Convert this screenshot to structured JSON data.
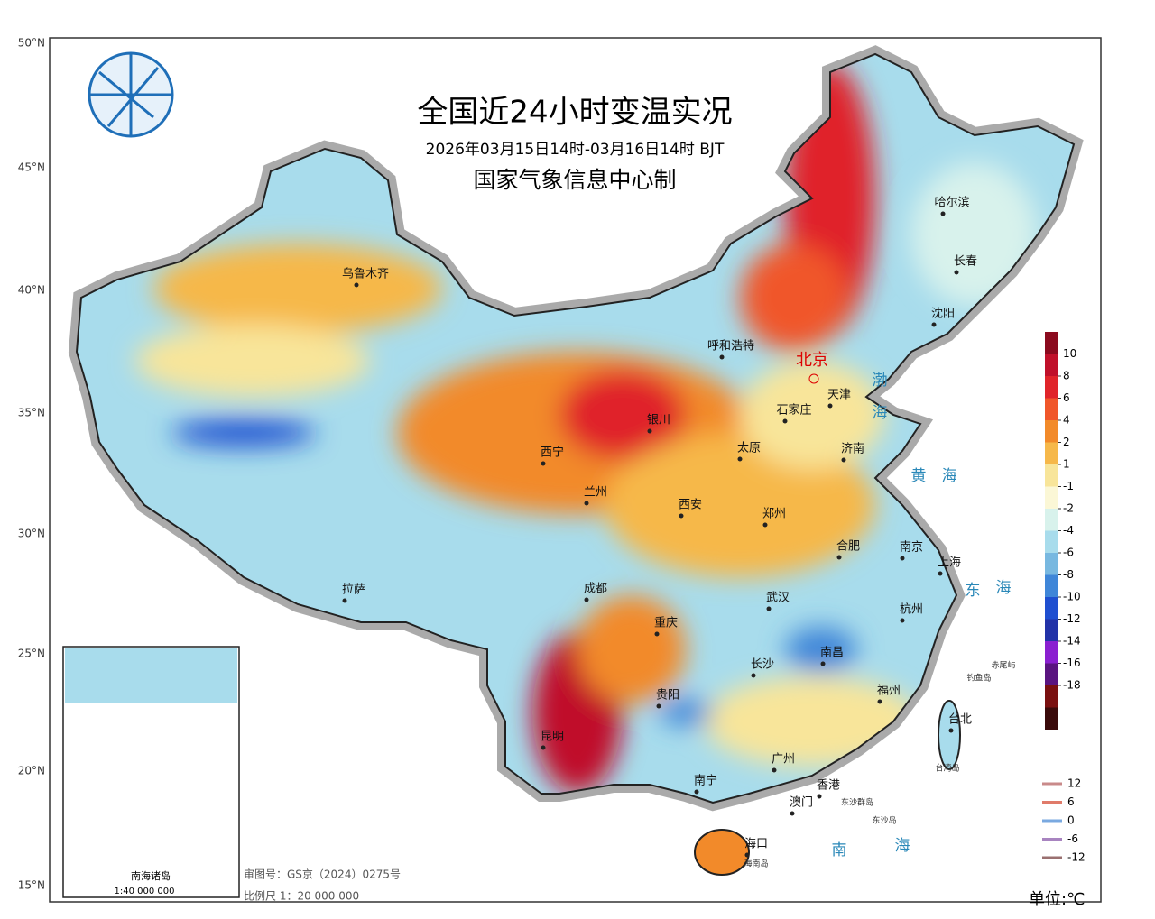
{
  "header": {
    "title": "全国近24小时变温实况",
    "subtitle": "2026年03月15日14时-03月16日14时 BJT",
    "producer": "国家气象信息中心制"
  },
  "latitude_ticks": [
    "50°N",
    "45°N",
    "40°N",
    "35°N",
    "30°N",
    "25°N",
    "20°N",
    "15°N"
  ],
  "cities": [
    "北京",
    "天津",
    "石家庄",
    "太原",
    "济南",
    "呼和浩特",
    "银川",
    "西宁",
    "兰州",
    "西安",
    "郑州",
    "合肥",
    "南京",
    "上海",
    "杭州",
    "武汉",
    "长沙",
    "南昌",
    "福州",
    "台北",
    "广州",
    "香港",
    "澳门",
    "南宁",
    "海口",
    "贵阳",
    "昆明",
    "重庆",
    "成都",
    "拉萨",
    "乌鲁木齐",
    "哈尔滨",
    "长春",
    "沈阳"
  ],
  "seas": [
    "渤",
    "海",
    "黄",
    "海",
    "东",
    "海",
    "南",
    "海"
  ],
  "islands": [
    "钓鱼岛",
    "赤尾屿",
    "东沙群岛",
    "东沙岛",
    "台湾岛",
    "海南岛"
  ],
  "inset": {
    "title": "南海诸岛",
    "scale": "1:40 000 000"
  },
  "footer": {
    "approval": "审图号：GS京（2024）0275号",
    "scale": "比例尺  1：20 000 000",
    "unit": "单位:℃"
  },
  "legend": {
    "values": [
      10,
      8,
      6,
      4,
      2,
      1,
      -1,
      -2,
      -4,
      -6,
      -8,
      -10,
      -12,
      -14,
      -16,
      -18
    ],
    "colors": [
      "#8b0a1e",
      "#c0102a",
      "#e0242a",
      "#f0562a",
      "#f28a2a",
      "#f6b84a",
      "#f8e59a",
      "#fbf7d6",
      "#d8f2ec",
      "#a8dcec",
      "#78b8e0",
      "#3f86d8",
      "#1f4fd0",
      "#2232a8",
      "#8a1fd0",
      "#5a1480",
      "#7a1010",
      "#3a0a0a"
    ]
  },
  "line_legend": {
    "values": [
      12,
      6,
      0,
      -6,
      -12
    ],
    "colors": [
      "#c98a8a",
      "#e07b6a",
      "#7aa9e0",
      "#a884c0",
      "#9a7070"
    ]
  }
}
